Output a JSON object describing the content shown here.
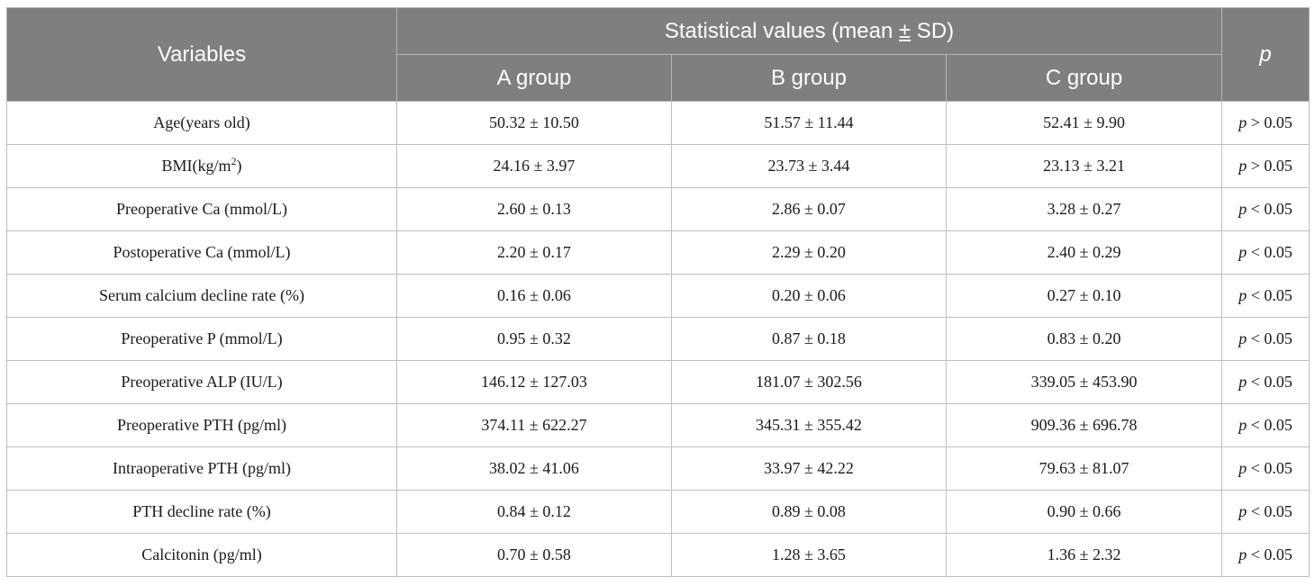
{
  "header": {
    "variables": "Variables",
    "stat_prefix": "Statistical values (mean ",
    "stat_pm": "±",
    "stat_suffix": " SD)",
    "p": "p",
    "groups": [
      "A group",
      "B group",
      "C group"
    ]
  },
  "rows": [
    {
      "pre": "Age(years old)",
      "sup": "",
      "post": "",
      "a": "50.32 ± 10.50",
      "b": "51.57 ± 11.44",
      "c": "52.41 ± 9.90",
      "p_sym": "p",
      "p_val": " > 0.05"
    },
    {
      "pre": "BMI(kg/m",
      "sup": "2",
      "post": ")",
      "a": "24.16 ± 3.97",
      "b": "23.73 ± 3.44",
      "c": "23.13 ± 3.21",
      "p_sym": "p",
      "p_val": " > 0.05"
    },
    {
      "pre": "Preoperative Ca (mmol/L)",
      "sup": "",
      "post": "",
      "a": "2.60 ± 0.13",
      "b": "2.86 ± 0.07",
      "c": "3.28 ± 0.27",
      "p_sym": "p",
      "p_val": " < 0.05"
    },
    {
      "pre": "Postoperative Ca (mmol/L)",
      "sup": "",
      "post": "",
      "a": "2.20 ± 0.17",
      "b": "2.29 ± 0.20",
      "c": "2.40 ± 0.29",
      "p_sym": "p",
      "p_val": " < 0.05"
    },
    {
      "pre": "Serum calcium decline rate (%)",
      "sup": "",
      "post": "",
      "a": "0.16 ± 0.06",
      "b": "0.20 ± 0.06",
      "c": "0.27 ± 0.10",
      "p_sym": "p",
      "p_val": " < 0.05"
    },
    {
      "pre": "Preoperative P (mmol/L)",
      "sup": "",
      "post": "",
      "a": "0.95 ± 0.32",
      "b": "0.87 ± 0.18",
      "c": "0.83 ± 0.20",
      "p_sym": "p",
      "p_val": " < 0.05"
    },
    {
      "pre": "Preoperative ALP (IU/L)",
      "sup": "",
      "post": "",
      "a": "146.12 ± 127.03",
      "b": "181.07 ± 302.56",
      "c": "339.05 ± 453.90",
      "p_sym": "p",
      "p_val": " < 0.05"
    },
    {
      "pre": "Preoperative PTH (pg/ml)",
      "sup": "",
      "post": "",
      "a": "374.11 ± 622.27",
      "b": "345.31 ± 355.42",
      "c": "909.36 ± 696.78",
      "p_sym": "p",
      "p_val": " < 0.05"
    },
    {
      "pre": "Intraoperative PTH (pg/ml)",
      "sup": "",
      "post": "",
      "a": "38.02 ± 41.06",
      "b": "33.97 ± 42.22",
      "c": "79.63 ± 81.07",
      "p_sym": "p",
      "p_val": " < 0.05"
    },
    {
      "pre": "PTH decline rate (%)",
      "sup": "",
      "post": "",
      "a": "0.84 ± 0.12",
      "b": "0.89 ± 0.08",
      "c": "0.90 ± 0.66",
      "p_sym": "p",
      "p_val": " < 0.05"
    },
    {
      "pre": "Calcitonin (pg/ml)",
      "sup": "",
      "post": "",
      "a": "0.70 ± 0.58",
      "b": "1.28 ± 3.65",
      "c": "1.36 ± 2.32",
      "p_sym": "p",
      "p_val": " < 0.05"
    }
  ],
  "colors": {
    "header_bg": "#7f7f7f",
    "header_text": "#ffffff",
    "border": "#bfbfbf"
  }
}
